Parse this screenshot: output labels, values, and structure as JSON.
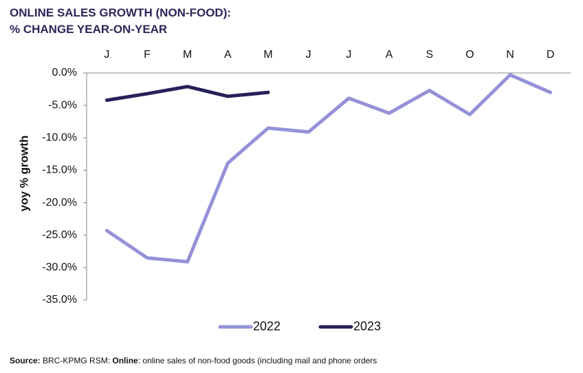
{
  "chart_data": {
    "type": "line",
    "title": [
      "ONLINE SALES GROWTH (NON-FOOD):",
      "% CHANGE YEAR-ON-YEAR"
    ],
    "y_label": "yoy % growth",
    "categories": [
      "J",
      "F",
      "M",
      "A",
      "M",
      "J",
      "J",
      "A",
      "S",
      "O",
      "N",
      "D"
    ],
    "series": [
      {
        "name": "2022",
        "color": "#9591d8",
        "values": [
          -24.3,
          -28.5,
          -29.1,
          -13.9,
          -8.5,
          -9.1,
          -3.9,
          -6.2,
          -2.7,
          -6.4,
          -0.3,
          -3.0
        ]
      },
      {
        "name": "2023",
        "color": "#25215a",
        "values": [
          -4.2,
          -3.2,
          -2.1,
          -3.6,
          -3.0,
          null,
          null,
          null,
          null,
          null,
          null,
          null
        ]
      }
    ],
    "ylim": [
      -35,
      0
    ],
    "yticks": [
      {
        "value": 0,
        "label": "0.0%"
      },
      {
        "value": -5,
        "label": "-5.0%"
      },
      {
        "value": -10,
        "label": "-10.0%"
      },
      {
        "value": -15,
        "label": "-15.0%"
      },
      {
        "value": -20,
        "label": "-20.0%"
      },
      {
        "value": -25,
        "label": "-25.0%"
      },
      {
        "value": -30,
        "label": "-30.0%"
      },
      {
        "value": -35,
        "label": "-35.0%"
      }
    ],
    "legend": "bottom"
  },
  "source": {
    "label": "Source:",
    "text": "BRC-KPMG RSM:",
    "label2": "Online",
    "text2": ": online sales of non-food goods (including mail and phone orders"
  }
}
